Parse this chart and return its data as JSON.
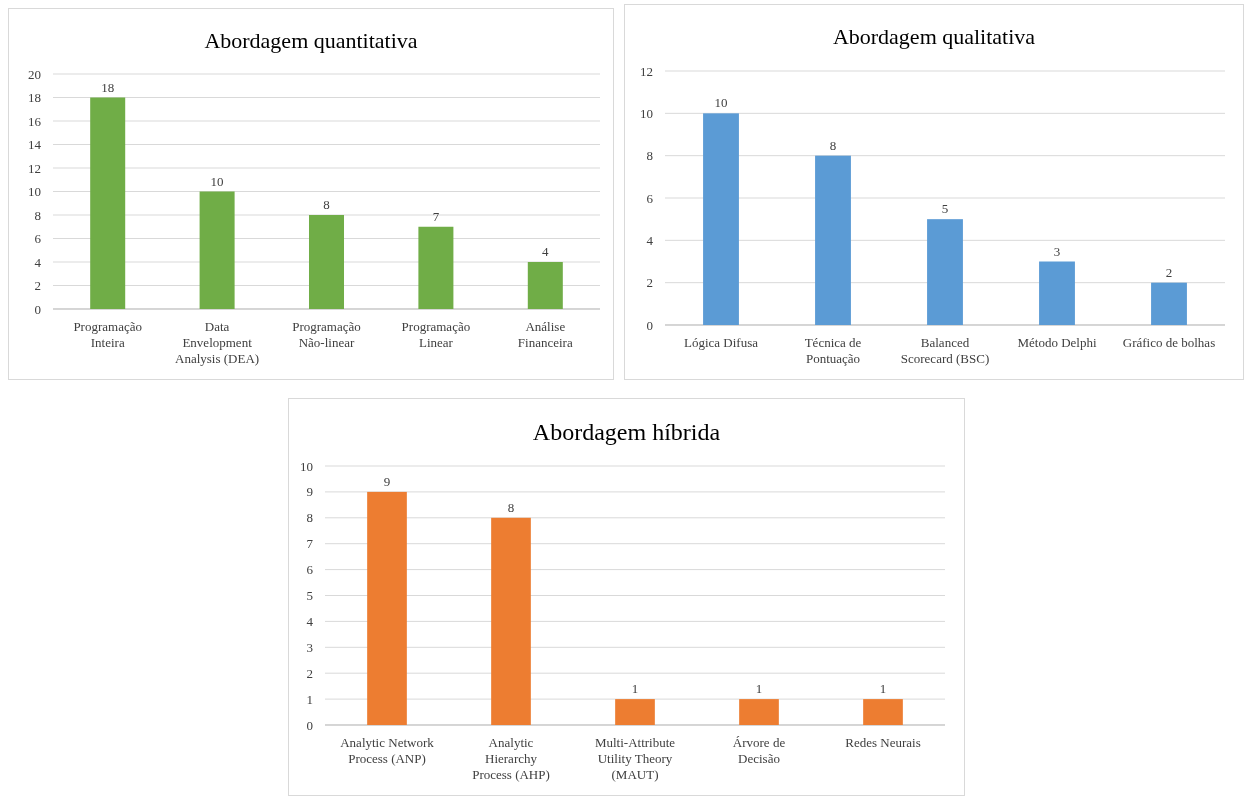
{
  "chart_data": [
    {
      "type": "bar",
      "title": "Abordagem quantitativa",
      "categories": [
        "Programação\nInteira",
        "Data\nEnvelopment\nAnalysis (DEA)",
        "Programação\nNão-linear",
        "Programação\nLinear",
        "Análise\nFinanceira"
      ],
      "values": [
        18,
        10,
        8,
        7,
        4
      ],
      "color": "#70ad47",
      "ylim": [
        0,
        20
      ],
      "yticks": [
        0,
        2,
        4,
        6,
        8,
        10,
        12,
        14,
        16,
        18,
        20
      ],
      "grid": "y",
      "data_labels": true
    },
    {
      "type": "bar",
      "title": "Abordagem qualitativa",
      "categories": [
        "Lógica Difusa",
        "Técnica de\nPontuação",
        "Balanced\nScorecard (BSC)",
        "Método Delphi",
        "Gráfico de bolhas"
      ],
      "values": [
        10,
        8,
        5,
        3,
        2
      ],
      "color": "#5b9bd5",
      "ylim": [
        0,
        12
      ],
      "yticks": [
        0,
        2,
        4,
        6,
        8,
        10,
        12
      ],
      "grid": "y",
      "data_labels": true
    },
    {
      "type": "bar",
      "title": "Abordagem híbrida",
      "categories": [
        "Analytic Network\nProcess (ANP)",
        "Analytic\nHierarchy\nProcess (AHP)",
        "Multi-Attribute\nUtility Theory\n(MAUT)",
        "Árvore de\nDecisão",
        "Redes Neurais"
      ],
      "values": [
        9,
        8,
        1,
        1,
        1
      ],
      "color": "#ed7d31",
      "ylim": [
        0,
        10
      ],
      "yticks": [
        0,
        1,
        2,
        3,
        4,
        5,
        6,
        7,
        8,
        9,
        10
      ],
      "grid": "y",
      "data_labels": true
    }
  ]
}
